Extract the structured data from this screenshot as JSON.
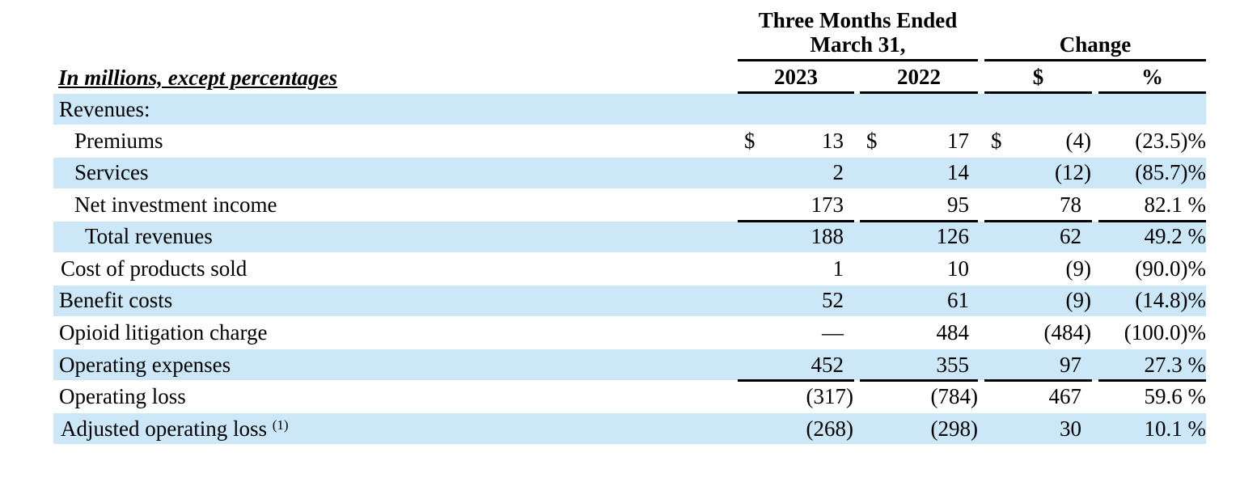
{
  "header": {
    "period_title_line1": "Three Months Ended",
    "period_title_line2": "March 31,",
    "change_title": "Change",
    "units_label": "In millions, except percentages",
    "col_2023": "2023",
    "col_2022": "2022",
    "col_change_dollar": "$",
    "col_change_pct": "%"
  },
  "rows": [
    {
      "label": "Revenues:",
      "v2023": "",
      "v2022": "",
      "chg": "",
      "pct": "",
      "cur": false
    },
    {
      "label": "Premiums",
      "v2023": "13",
      "v2022": "17",
      "chg": "(4)",
      "pct": "(23.5)%",
      "cur": true,
      "cur_sym": "$"
    },
    {
      "label": "Services",
      "v2023": "2",
      "v2022": "14",
      "chg": "(12)",
      "pct": "(85.7)%",
      "cur": false
    },
    {
      "label": "Net investment income",
      "v2023": "173",
      "v2022": "95",
      "chg": "78",
      "pct": "82.1 %",
      "cur": false
    },
    {
      "label": "Total revenues",
      "v2023": "188",
      "v2022": "126",
      "chg": "62",
      "pct": "49.2 %",
      "cur": false
    },
    {
      "label": "Cost of products sold",
      "v2023": "1",
      "v2022": "10",
      "chg": "(9)",
      "pct": "(90.0)%",
      "cur": false
    },
    {
      "label": "Benefit costs",
      "v2023": "52",
      "v2022": "61",
      "chg": "(9)",
      "pct": "(14.8)%",
      "cur": false
    },
    {
      "label": "Opioid litigation charge",
      "v2023": "—",
      "v2022": "484",
      "chg": "(484)",
      "pct": "(100.0)%",
      "cur": false
    },
    {
      "label": "Operating expenses",
      "v2023": "452",
      "v2022": "355",
      "chg": "97",
      "pct": "27.3 %",
      "cur": false
    },
    {
      "label": "Operating loss",
      "v2023": "(317)",
      "v2022": "(784)",
      "chg": "467",
      "pct": "59.6 %",
      "cur": false
    },
    {
      "label": "Adjusted operating loss",
      "label_sup": "(1)",
      "v2023": "(268)",
      "v2022": "(298)",
      "chg": "30",
      "pct": "10.1 %",
      "cur": false
    }
  ],
  "colors": {
    "band": "#cce8f8",
    "rule": "#000000"
  }
}
